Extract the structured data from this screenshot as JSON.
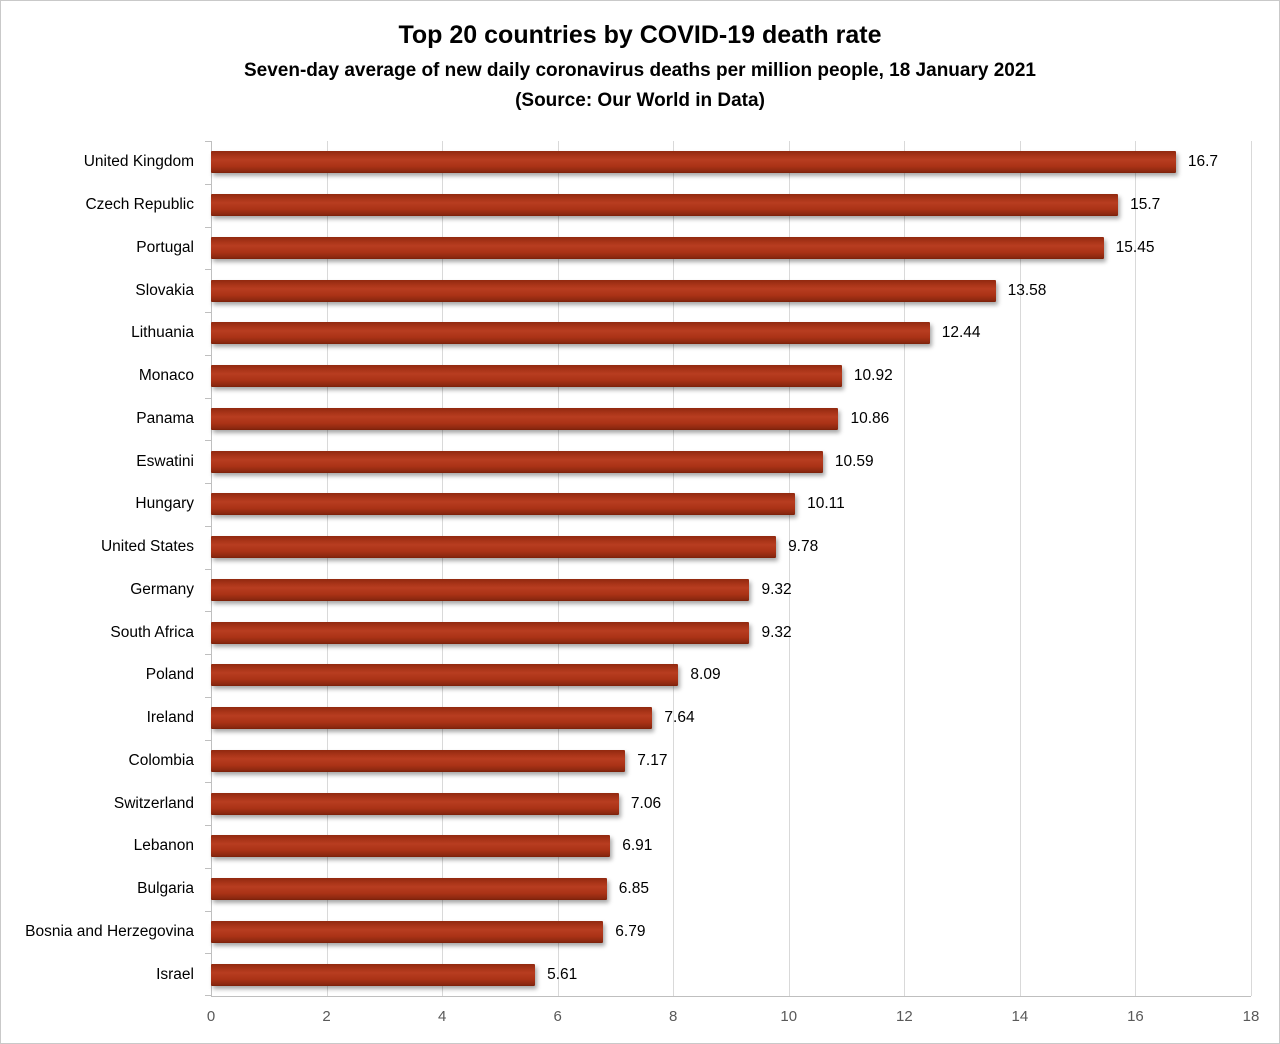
{
  "chart_data": {
    "type": "bar",
    "orientation": "horizontal",
    "title": "Top 20 countries by COVID-19 death rate",
    "subtitle": "Seven-day average of new daily coronavirus deaths per million people, 18 January 2021",
    "source": "(Source: Our World in Data)",
    "categories": [
      "United Kingdom",
      "Czech Republic",
      "Portugal",
      "Slovakia",
      "Lithuania",
      "Monaco",
      "Panama",
      "Eswatini",
      "Hungary",
      "United States",
      "Germany",
      "South Africa",
      "Poland",
      "Ireland",
      "Colombia",
      "Switzerland",
      "Lebanon",
      "Bulgaria",
      "Bosnia and Herzegovina",
      "Israel"
    ],
    "values": [
      16.7,
      15.7,
      15.45,
      13.58,
      12.44,
      10.92,
      10.86,
      10.59,
      10.11,
      9.78,
      9.32,
      9.32,
      8.09,
      7.64,
      7.17,
      7.06,
      6.91,
      6.85,
      6.79,
      5.61
    ],
    "value_labels": [
      "16.7",
      "15.7",
      "15.45",
      "13.58",
      "12.44",
      "10.92",
      "10.86",
      "10.59",
      "10.11",
      "9.78",
      "9.32",
      "9.32",
      "8.09",
      "7.64",
      "7.17",
      "7.06",
      "6.91",
      "6.85",
      "6.79",
      "5.61"
    ],
    "xlabel": "",
    "ylabel": "",
    "xlim": [
      0,
      18
    ],
    "x_ticks": [
      0,
      2,
      4,
      6,
      8,
      10,
      12,
      14,
      16,
      18
    ],
    "grid": true,
    "legend": false,
    "colors": {
      "bar_top": "#90290f",
      "bar_mid": "#b83d20",
      "bar_bottom": "#7a2008",
      "gridline": "#d9d9d9",
      "axis_line": "#bfbfbf",
      "tick_label": "#595959",
      "value_label": "#000000",
      "category_label": "#000000",
      "background": "#ffffff"
    }
  }
}
